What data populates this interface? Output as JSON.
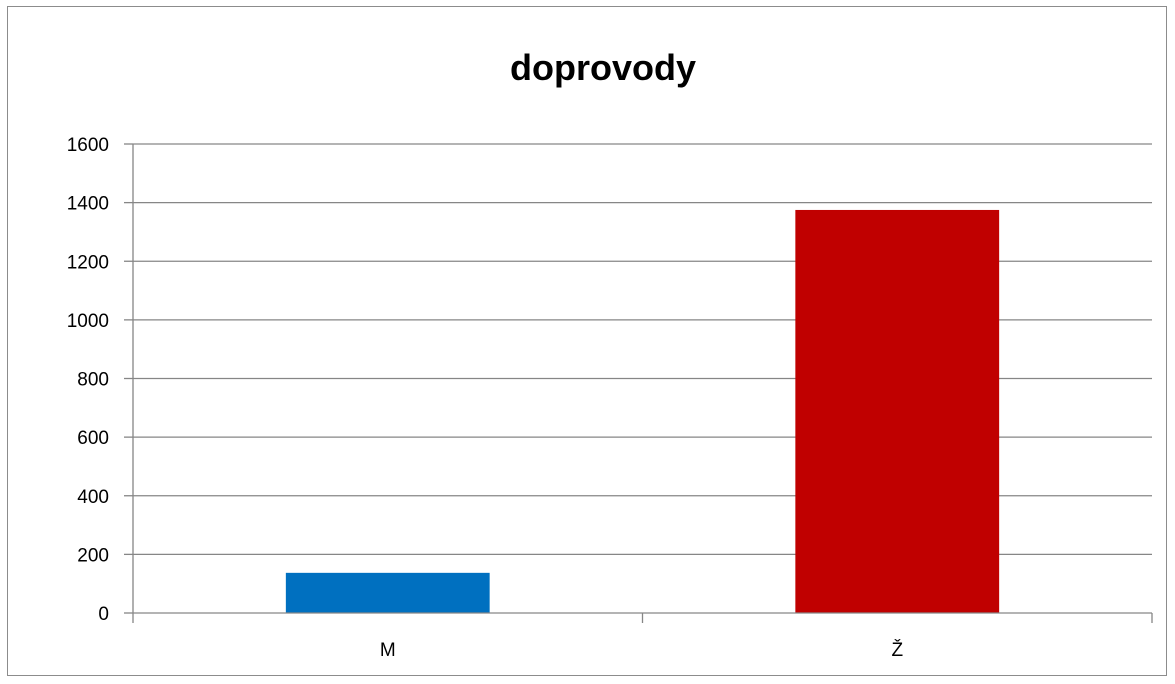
{
  "chart_data": {
    "type": "bar",
    "title": "doprovody",
    "xlabel": "",
    "ylabel": "",
    "categories": [
      "M",
      "Ž"
    ],
    "values": [
      137,
      1375
    ],
    "colors": [
      "#0070c0",
      "#c00000"
    ],
    "ylim": [
      0,
      1600
    ],
    "yticks": [
      0,
      200,
      400,
      600,
      800,
      1000,
      1200,
      1400,
      1600
    ],
    "grid": true,
    "legend": "none"
  }
}
